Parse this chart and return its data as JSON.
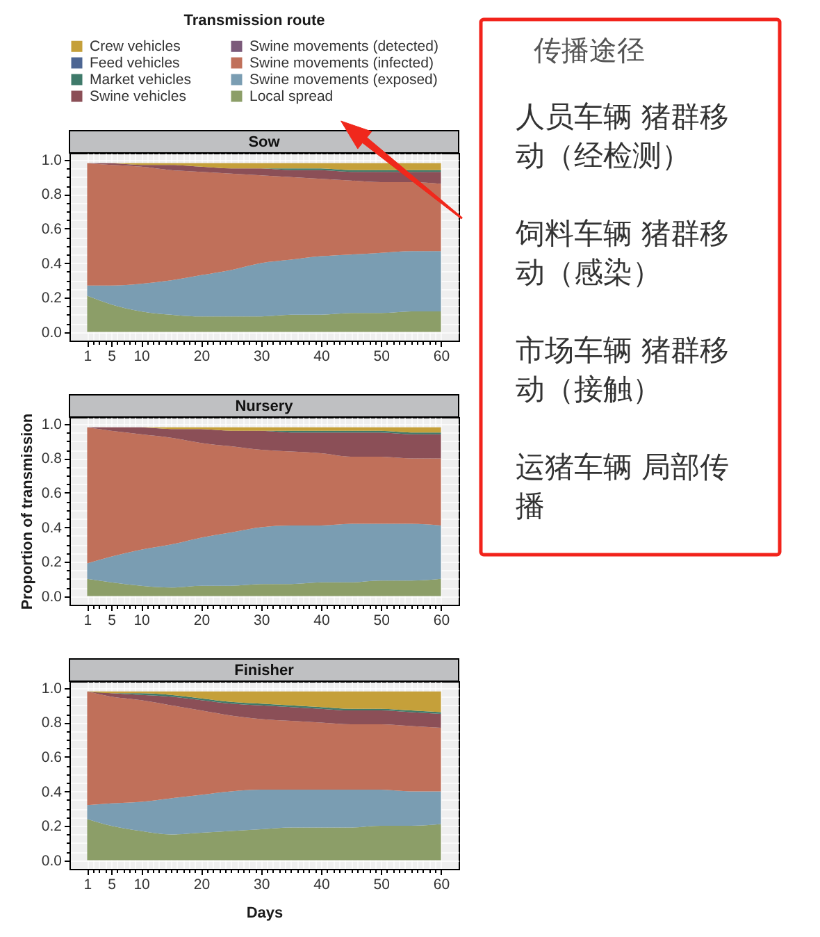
{
  "chart_data": [
    {
      "type": "area",
      "title": "Sow",
      "stacked": true,
      "legend": "top",
      "legend_title": "Transmission route",
      "grid": true,
      "x": [
        1,
        5,
        10,
        15,
        20,
        25,
        30,
        35,
        40,
        45,
        50,
        55,
        60
      ],
      "xlim": [
        -1.95,
        62.95
      ],
      "ylim": [
        -0.05,
        1.04
      ],
      "xticks": [
        1,
        {
          "value": 2,
          "label": null
        },
        {
          "value": 3,
          "label": null
        },
        {
          "value": 4,
          "label": null
        },
        5,
        {
          "value": 6,
          "label": null
        },
        {
          "value": 7,
          "label": null
        },
        {
          "value": 8,
          "label": null
        },
        {
          "value": 9,
          "label": null
        },
        10,
        {
          "value": 11,
          "label": null
        },
        {
          "value": 12,
          "label": null
        },
        {
          "value": 13,
          "label": null
        },
        {
          "value": 14,
          "label": null
        },
        {
          "value": 15,
          "label": null
        },
        {
          "value": 16,
          "label": null
        },
        {
          "value": 17,
          "label": null
        },
        {
          "value": 18,
          "label": null
        },
        {
          "value": 19,
          "label": null
        },
        20,
        {
          "value": 21,
          "label": null
        },
        {
          "value": 22,
          "label": null
        },
        {
          "value": 23,
          "label": null
        },
        {
          "value": 24,
          "label": null
        },
        {
          "value": 25,
          "label": null
        },
        {
          "value": 26,
          "label": null
        },
        {
          "value": 27,
          "label": null
        },
        {
          "value": 28,
          "label": null
        },
        {
          "value": 29,
          "label": null
        },
        30,
        {
          "value": 31,
          "label": null
        },
        {
          "value": 32,
          "label": null
        },
        {
          "value": 33,
          "label": null
        },
        {
          "value": 34,
          "label": null
        },
        {
          "value": 35,
          "label": null
        },
        {
          "value": 36,
          "label": null
        },
        {
          "value": 37,
          "label": null
        },
        {
          "value": 38,
          "label": null
        },
        {
          "value": 39,
          "label": null
        },
        40,
        {
          "value": 41,
          "label": null
        },
        {
          "value": 42,
          "label": null
        },
        {
          "value": 43,
          "label": null
        },
        {
          "value": 44,
          "label": null
        },
        {
          "value": 45,
          "label": null
        },
        {
          "value": 46,
          "label": null
        },
        {
          "value": 47,
          "label": null
        },
        {
          "value": 48,
          "label": null
        },
        {
          "value": 49,
          "label": null
        },
        50,
        {
          "value": 51,
          "label": null
        },
        {
          "value": 52,
          "label": null
        },
        {
          "value": 53,
          "label": null
        },
        {
          "value": 54,
          "label": null
        },
        {
          "value": 55,
          "label": null
        },
        {
          "value": 56,
          "label": null
        },
        {
          "value": 57,
          "label": null
        },
        {
          "value": 58,
          "label": null
        },
        {
          "value": 59,
          "label": null
        },
        60
      ],
      "yticks": [
        {
          "value": 0,
          "label": "0.0"
        },
        {
          "value": 0.05,
          "label": null
        },
        {
          "value": 0.1,
          "label": null
        },
        {
          "value": 0.15,
          "label": null
        },
        0.2,
        {
          "value": 0.25,
          "label": null
        },
        {
          "value": 0.3,
          "label": null
        },
        {
          "value": 0.35,
          "label": null
        },
        0.4,
        {
          "value": 0.45,
          "label": null
        },
        {
          "value": 0.5,
          "label": null
        },
        {
          "value": 0.55,
          "label": null
        },
        0.6,
        {
          "value": 0.65,
          "label": null
        },
        {
          "value": 0.7,
          "label": null
        },
        {
          "value": 0.75,
          "label": null
        },
        0.8,
        {
          "value": 0.85,
          "label": null
        },
        {
          "value": 0.9,
          "label": null
        },
        {
          "value": 0.95,
          "label": null
        },
        {
          "value": 1,
          "label": "1.0"
        }
      ],
      "series": [
        {
          "name": "Local spread",
          "color": "#8c9e68",
          "values": [
            0.21,
            0.16,
            0.12,
            0.1,
            0.09,
            0.09,
            0.09,
            0.1,
            0.1,
            0.11,
            0.11,
            0.12,
            0.12
          ]
        },
        {
          "name": "Swine movements (exposed)",
          "color": "#7a9db2",
          "values": [
            0.06,
            0.11,
            0.16,
            0.2,
            0.24,
            0.27,
            0.31,
            0.32,
            0.34,
            0.34,
            0.35,
            0.35,
            0.35
          ]
        },
        {
          "name": "Swine movements (infected)",
          "color": "#c0705a",
          "values": [
            0.71,
            0.7,
            0.68,
            0.64,
            0.6,
            0.56,
            0.51,
            0.48,
            0.45,
            0.43,
            0.41,
            0.4,
            0.39
          ]
        },
        {
          "name": "Swine movements (detected)",
          "color": "#7b5a7a",
          "values": [
            null,
            null,
            null,
            null,
            null,
            null,
            null,
            null,
            null,
            null,
            null,
            null,
            null
          ]
        },
        {
          "name": "Swine vehicles",
          "color": "#8b4f57",
          "values": [
            0,
            0.01,
            0.01,
            0.03,
            0.03,
            0.03,
            0.04,
            0.04,
            0.05,
            0.05,
            0.06,
            0.06,
            0.07
          ]
        },
        {
          "name": "Market vehicles",
          "color": "#3f7a6a",
          "values": [
            0,
            0,
            0,
            0,
            0,
            0,
            0,
            0.01,
            0.01,
            0.01,
            0.01,
            0.01,
            0.01
          ]
        },
        {
          "name": "Feed vehicles",
          "color": "#4d6693",
          "values": [
            null,
            null,
            null,
            null,
            null,
            null,
            null,
            null,
            null,
            null,
            null,
            null,
            null
          ]
        },
        {
          "name": "Crew vehicles",
          "color": "#c5a03a",
          "values": [
            0,
            0,
            0.01,
            0.01,
            0.02,
            0.03,
            0.03,
            0.03,
            0.03,
            0.04,
            0.04,
            0.04,
            0.04
          ]
        }
      ]
    },
    {
      "type": "area",
      "title": "Nursery",
      "stacked": true,
      "grid": true,
      "ylabel": "Proportion of transmission",
      "x": [
        1,
        5,
        10,
        15,
        20,
        25,
        30,
        35,
        40,
        45,
        50,
        55,
        60
      ],
      "xlim": [
        -1.95,
        62.95
      ],
      "ylim": [
        -0.05,
        1.04
      ],
      "xticks": [
        1,
        {
          "value": 2,
          "label": null
        },
        {
          "value": 3,
          "label": null
        },
        {
          "value": 4,
          "label": null
        },
        5,
        {
          "value": 6,
          "label": null
        },
        {
          "value": 7,
          "label": null
        },
        {
          "value": 8,
          "label": null
        },
        {
          "value": 9,
          "label": null
        },
        10,
        {
          "value": 11,
          "label": null
        },
        {
          "value": 12,
          "label": null
        },
        {
          "value": 13,
          "label": null
        },
        {
          "value": 14,
          "label": null
        },
        {
          "value": 15,
          "label": null
        },
        {
          "value": 16,
          "label": null
        },
        {
          "value": 17,
          "label": null
        },
        {
          "value": 18,
          "label": null
        },
        {
          "value": 19,
          "label": null
        },
        20,
        {
          "value": 21,
          "label": null
        },
        {
          "value": 22,
          "label": null
        },
        {
          "value": 23,
          "label": null
        },
        {
          "value": 24,
          "label": null
        },
        {
          "value": 25,
          "label": null
        },
        {
          "value": 26,
          "label": null
        },
        {
          "value": 27,
          "label": null
        },
        {
          "value": 28,
          "label": null
        },
        {
          "value": 29,
          "label": null
        },
        30,
        {
          "value": 31,
          "label": null
        },
        {
          "value": 32,
          "label": null
        },
        {
          "value": 33,
          "label": null
        },
        {
          "value": 34,
          "label": null
        },
        {
          "value": 35,
          "label": null
        },
        {
          "value": 36,
          "label": null
        },
        {
          "value": 37,
          "label": null
        },
        {
          "value": 38,
          "label": null
        },
        {
          "value": 39,
          "label": null
        },
        40,
        {
          "value": 41,
          "label": null
        },
        {
          "value": 42,
          "label": null
        },
        {
          "value": 43,
          "label": null
        },
        {
          "value": 44,
          "label": null
        },
        {
          "value": 45,
          "label": null
        },
        {
          "value": 46,
          "label": null
        },
        {
          "value": 47,
          "label": null
        },
        {
          "value": 48,
          "label": null
        },
        {
          "value": 49,
          "label": null
        },
        50,
        {
          "value": 51,
          "label": null
        },
        {
          "value": 52,
          "label": null
        },
        {
          "value": 53,
          "label": null
        },
        {
          "value": 54,
          "label": null
        },
        {
          "value": 55,
          "label": null
        },
        {
          "value": 56,
          "label": null
        },
        {
          "value": 57,
          "label": null
        },
        {
          "value": 58,
          "label": null
        },
        {
          "value": 59,
          "label": null
        },
        60
      ],
      "yticks": [
        {
          "value": 0,
          "label": "0.0"
        },
        {
          "value": 0.05,
          "label": null
        },
        {
          "value": 0.1,
          "label": null
        },
        {
          "value": 0.15,
          "label": null
        },
        0.2,
        {
          "value": 0.25,
          "label": null
        },
        {
          "value": 0.3,
          "label": null
        },
        {
          "value": 0.35,
          "label": null
        },
        0.4,
        {
          "value": 0.45,
          "label": null
        },
        {
          "value": 0.5,
          "label": null
        },
        {
          "value": 0.55,
          "label": null
        },
        0.6,
        {
          "value": 0.65,
          "label": null
        },
        {
          "value": 0.7,
          "label": null
        },
        {
          "value": 0.75,
          "label": null
        },
        0.8,
        {
          "value": 0.85,
          "label": null
        },
        {
          "value": 0.9,
          "label": null
        },
        {
          "value": 0.95,
          "label": null
        },
        {
          "value": 1,
          "label": "1.0"
        }
      ],
      "series": [
        {
          "name": "Local spread",
          "color": "#8c9e68",
          "values": [
            0.1,
            0.08,
            0.06,
            0.05,
            0.06,
            0.06,
            0.07,
            0.07,
            0.08,
            0.08,
            0.09,
            0.09,
            0.1
          ]
        },
        {
          "name": "Swine movements (exposed)",
          "color": "#7a9db2",
          "values": [
            0.09,
            0.15,
            0.21,
            0.25,
            0.28,
            0.31,
            0.33,
            0.34,
            0.33,
            0.34,
            0.33,
            0.33,
            0.31
          ]
        },
        {
          "name": "Swine movements (infected)",
          "color": "#c0705a",
          "values": [
            0.79,
            0.73,
            0.67,
            0.62,
            0.55,
            0.5,
            0.45,
            0.43,
            0.42,
            0.39,
            0.39,
            0.38,
            0.39
          ]
        },
        {
          "name": "Swine vehicles",
          "color": "#8b4f57",
          "values": [
            0,
            0.02,
            0.04,
            0.05,
            0.08,
            0.09,
            0.11,
            0.11,
            0.12,
            0.14,
            0.14,
            0.14,
            0.14
          ]
        },
        {
          "name": "Market vehicles",
          "color": "#3f7a6a",
          "values": [
            0,
            0,
            0,
            0,
            0,
            0,
            0,
            0.01,
            0.01,
            0.01,
            0.01,
            0.01,
            0.01
          ]
        },
        {
          "name": "Crew vehicles",
          "color": "#c5a03a",
          "values": [
            0,
            0,
            0,
            0.01,
            0.01,
            0.02,
            0.02,
            0.02,
            0.02,
            0.02,
            0.02,
            0.03,
            0.03
          ]
        }
      ]
    },
    {
      "type": "area",
      "title": "Finisher",
      "stacked": true,
      "grid": true,
      "xlabel": "Days",
      "x": [
        1,
        5,
        10,
        15,
        20,
        25,
        30,
        35,
        40,
        45,
        50,
        55,
        60
      ],
      "xlim": [
        -1.95,
        62.95
      ],
      "ylim": [
        -0.05,
        1.04
      ],
      "xticks": [
        1,
        {
          "value": 2,
          "label": null
        },
        {
          "value": 3,
          "label": null
        },
        {
          "value": 4,
          "label": null
        },
        5,
        {
          "value": 6,
          "label": null
        },
        {
          "value": 7,
          "label": null
        },
        {
          "value": 8,
          "label": null
        },
        {
          "value": 9,
          "label": null
        },
        10,
        {
          "value": 11,
          "label": null
        },
        {
          "value": 12,
          "label": null
        },
        {
          "value": 13,
          "label": null
        },
        {
          "value": 14,
          "label": null
        },
        {
          "value": 15,
          "label": null
        },
        {
          "value": 16,
          "label": null
        },
        {
          "value": 17,
          "label": null
        },
        {
          "value": 18,
          "label": null
        },
        {
          "value": 19,
          "label": null
        },
        20,
        {
          "value": 21,
          "label": null
        },
        {
          "value": 22,
          "label": null
        },
        {
          "value": 23,
          "label": null
        },
        {
          "value": 24,
          "label": null
        },
        {
          "value": 25,
          "label": null
        },
        {
          "value": 26,
          "label": null
        },
        {
          "value": 27,
          "label": null
        },
        {
          "value": 28,
          "label": null
        },
        {
          "value": 29,
          "label": null
        },
        30,
        {
          "value": 31,
          "label": null
        },
        {
          "value": 32,
          "label": null
        },
        {
          "value": 33,
          "label": null
        },
        {
          "value": 34,
          "label": null
        },
        {
          "value": 35,
          "label": null
        },
        {
          "value": 36,
          "label": null
        },
        {
          "value": 37,
          "label": null
        },
        {
          "value": 38,
          "label": null
        },
        {
          "value": 39,
          "label": null
        },
        40,
        {
          "value": 41,
          "label": null
        },
        {
          "value": 42,
          "label": null
        },
        {
          "value": 43,
          "label": null
        },
        {
          "value": 44,
          "label": null
        },
        {
          "value": 45,
          "label": null
        },
        {
          "value": 46,
          "label": null
        },
        {
          "value": 47,
          "label": null
        },
        {
          "value": 48,
          "label": null
        },
        {
          "value": 49,
          "label": null
        },
        50,
        {
          "value": 51,
          "label": null
        },
        {
          "value": 52,
          "label": null
        },
        {
          "value": 53,
          "label": null
        },
        {
          "value": 54,
          "label": null
        },
        {
          "value": 55,
          "label": null
        },
        {
          "value": 56,
          "label": null
        },
        {
          "value": 57,
          "label": null
        },
        {
          "value": 58,
          "label": null
        },
        {
          "value": 59,
          "label": null
        },
        60
      ],
      "yticks": [
        {
          "value": 0,
          "label": "0.0"
        },
        {
          "value": 0.05,
          "label": null
        },
        {
          "value": 0.1,
          "label": null
        },
        {
          "value": 0.15,
          "label": null
        },
        0.2,
        {
          "value": 0.25,
          "label": null
        },
        {
          "value": 0.3,
          "label": null
        },
        {
          "value": 0.35,
          "label": null
        },
        0.4,
        {
          "value": 0.45,
          "label": null
        },
        {
          "value": 0.5,
          "label": null
        },
        {
          "value": 0.55,
          "label": null
        },
        0.6,
        {
          "value": 0.65,
          "label": null
        },
        {
          "value": 0.7,
          "label": null
        },
        {
          "value": 0.75,
          "label": null
        },
        0.8,
        {
          "value": 0.85,
          "label": null
        },
        {
          "value": 0.9,
          "label": null
        },
        {
          "value": 0.95,
          "label": null
        },
        {
          "value": 1,
          "label": "1.0"
        }
      ],
      "series": [
        {
          "name": "Local spread",
          "color": "#8c9e68",
          "values": [
            0.24,
            0.2,
            0.17,
            0.15,
            0.16,
            0.17,
            0.18,
            0.19,
            0.19,
            0.19,
            0.2,
            0.2,
            0.21
          ]
        },
        {
          "name": "Swine movements (exposed)",
          "color": "#7a9db2",
          "values": [
            0.08,
            0.13,
            0.17,
            0.21,
            0.22,
            0.23,
            0.23,
            0.22,
            0.22,
            0.22,
            0.21,
            0.2,
            0.19
          ]
        },
        {
          "name": "Swine movements (infected)",
          "color": "#c0705a",
          "values": [
            0.66,
            0.62,
            0.59,
            0.54,
            0.49,
            0.44,
            0.41,
            0.4,
            0.39,
            0.38,
            0.38,
            0.38,
            0.37
          ]
        },
        {
          "name": "Swine vehicles",
          "color": "#8b4f57",
          "values": [
            0,
            0.02,
            0.03,
            0.05,
            0.06,
            0.07,
            0.08,
            0.08,
            0.08,
            0.08,
            0.08,
            0.08,
            0.08
          ]
        },
        {
          "name": "Market vehicles",
          "color": "#3f7a6a",
          "values": [
            0,
            0,
            0.01,
            0.01,
            0.01,
            0.01,
            0.01,
            0.01,
            0.01,
            0.01,
            0.01,
            0.01,
            0.01
          ]
        },
        {
          "name": "Crew vehicles",
          "color": "#c5a03a",
          "values": [
            0,
            0.01,
            0.01,
            0.02,
            0.04,
            0.06,
            0.07,
            0.08,
            0.09,
            0.1,
            0.1,
            0.11,
            0.12
          ]
        }
      ]
    },
    {
      "type": "other",
      "title": "传播途径",
      "annotations": [
        "人员车辆 猪群移动（经检测）",
        "饲料车辆 猪群移动（感染）",
        "市场车辆 猪群移动（接触）",
        "运猪车辆 局部传播"
      ]
    }
  ]
}
